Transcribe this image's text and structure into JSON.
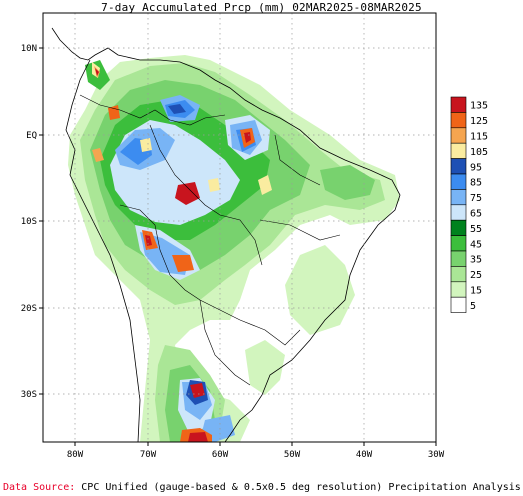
{
  "title": "7-day Accumulated Prcp (mm) 02MAR2025-08MAR2025",
  "lat_ticks": [
    "10N",
    "EQ",
    "10S",
    "20S",
    "30S"
  ],
  "lon_ticks": [
    "80W",
    "70W",
    "60W",
    "50W",
    "40W",
    "30W"
  ],
  "colorbar": {
    "labels": [
      "135",
      "125",
      "115",
      "105",
      "95",
      "85",
      "75",
      "65",
      "55",
      "45",
      "35",
      "25",
      "15",
      "5"
    ],
    "colors": [
      "#c8141e",
      "#f06418",
      "#f5a550",
      "#faeca0",
      "#1e50b4",
      "#3c8cf0",
      "#78b4f5",
      "#cde6fa",
      "#00821e",
      "#3cbe3c",
      "#78d26e",
      "#aae696",
      "#d2f5be",
      "#ffffff"
    ]
  },
  "source": {
    "label": "Data Source:",
    "text": "CPC Unified (gauge-based & 0.5x0.5 deg resolution) Precipitation Analysis"
  }
}
